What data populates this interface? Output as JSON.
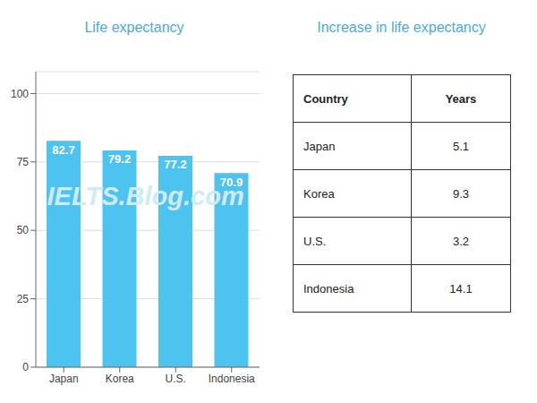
{
  "chart_data": [
    {
      "type": "bar",
      "title": "Life expectancy",
      "categories": [
        "Japan",
        "Korea",
        "U.S.",
        "Indonesia"
      ],
      "values": [
        82.7,
        79.2,
        77.2,
        70.9
      ],
      "color": "#4DC3F0",
      "ylim": [
        0,
        108
      ],
      "yticks": [
        0,
        25,
        50,
        75,
        100
      ],
      "grid": true,
      "data_labels": true,
      "annotations": [
        "IELTS.Blog.com"
      ]
    },
    {
      "type": "table",
      "title": "Increase in life expectancy",
      "columns": [
        "Country",
        "Years"
      ],
      "categories": [
        "Japan",
        "Korea",
        "U.S.",
        "Indonesia"
      ],
      "values": [
        5.1,
        9.3,
        3.2,
        14.1
      ]
    }
  ]
}
